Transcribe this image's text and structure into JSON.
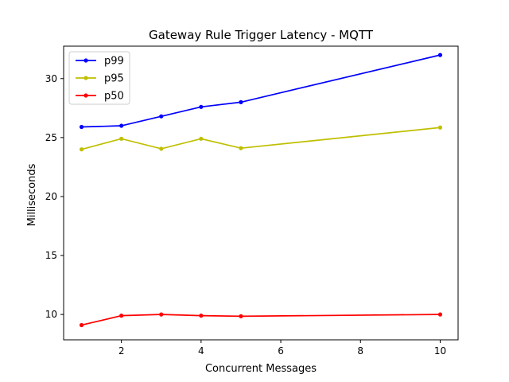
{
  "chart_data": {
    "type": "line",
    "title": "Gateway Rule Trigger Latency - MQTT",
    "xlabel": "Concurrent Messages",
    "ylabel": "Milliseconds",
    "xlim": [
      0.55,
      10.45
    ],
    "ylim": [
      7.85,
      32.75
    ],
    "xticks": [
      2,
      4,
      6,
      8,
      10
    ],
    "yticks": [
      10,
      15,
      20,
      25,
      30
    ],
    "x": [
      1,
      2,
      3,
      4,
      5,
      10
    ],
    "grid": false,
    "legend_position": "top-left",
    "series": [
      {
        "name": "p99",
        "color": "#0000ff",
        "values": [
          25.9,
          26.0,
          26.8,
          27.6,
          28.0,
          32.0
        ]
      },
      {
        "name": "p95",
        "color": "#bfbf00",
        "values": [
          24.0,
          24.9,
          24.05,
          24.9,
          24.1,
          25.85
        ]
      },
      {
        "name": "p50",
        "color": "#ff0000",
        "values": [
          9.1,
          9.9,
          10.0,
          9.9,
          9.85,
          10.0
        ]
      }
    ]
  }
}
